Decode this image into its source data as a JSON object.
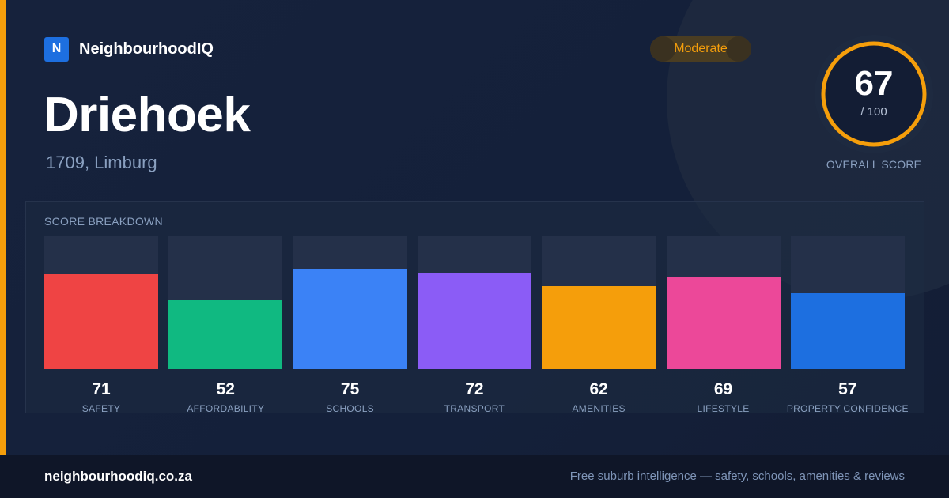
{
  "brand": {
    "logo_letter": "N",
    "name": "NeighbourhoodIQ"
  },
  "badge": {
    "label": "Moderate",
    "color": "#f59e0b"
  },
  "suburb": {
    "name": "Driehoek",
    "location": "1709, Limburg"
  },
  "overall": {
    "score": "67",
    "max": "/ 100",
    "caption": "OVERALL SCORE",
    "score_fraction": 0.67,
    "ring_color": "#f59e0b"
  },
  "breakdown": {
    "title": "SCORE BREAKDOWN",
    "items": [
      {
        "label": "SAFETY",
        "value": 71,
        "color": "#ef4444"
      },
      {
        "label": "AFFORDABILITY",
        "value": 52,
        "color": "#10b981"
      },
      {
        "label": "SCHOOLS",
        "value": 75,
        "color": "#3b82f6"
      },
      {
        "label": "TRANSPORT",
        "value": 72,
        "color": "#8b5cf6"
      },
      {
        "label": "AMENITIES",
        "value": 62,
        "color": "#f59e0b"
      },
      {
        "label": "LIFESTYLE",
        "value": 69,
        "color": "#ec4899"
      },
      {
        "label": "PROPERTY CONFIDENCE",
        "value": 57,
        "color": "#1d6fe0"
      }
    ]
  },
  "footer": {
    "url": "neighbourhoodiq.co.za",
    "tagline": "Free suburb intelligence — safety, schools, amenities & reviews"
  }
}
